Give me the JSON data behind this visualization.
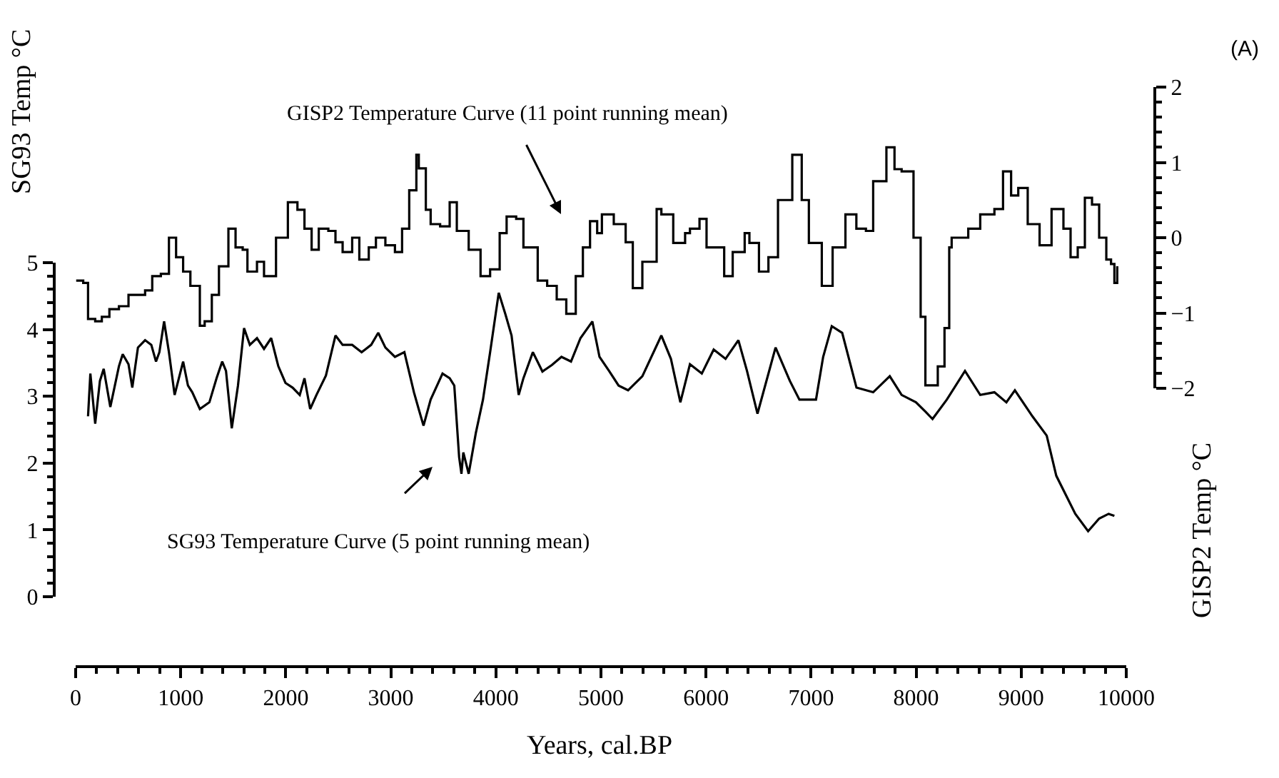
{
  "chart_data": {
    "type": "line",
    "xlabel": "Years, cal.BP",
    "ylabel": "SG93 Temp °C",
    "y2label": "GISP2 Temp °C",
    "xlim": [
      0,
      10000
    ],
    "xticks": [
      0,
      1000,
      2000,
      3000,
      4000,
      5000,
      6000,
      7000,
      8000,
      9000,
      10000
    ],
    "ylim": [
      0,
      5
    ],
    "yticks": [
      0,
      1,
      2,
      3,
      4,
      5
    ],
    "y2lim": [
      -2,
      2
    ],
    "y2ticks": [
      -2,
      -1,
      0,
      1,
      2
    ],
    "grid": false,
    "line_style": "solid",
    "marker": "none",
    "series": [
      {
        "type": "step",
        "axis": "y2",
        "color": "#000000",
        "x": [
          5,
          72,
          118,
          186,
          249,
          321,
          412,
          503,
          593,
          661,
          729,
          811,
          888,
          956,
          1023,
          1092,
          1182,
          1228,
          1296,
          1364,
          1454,
          1522,
          1590,
          1635,
          1726,
          1793,
          1907,
          2020,
          2111,
          2178,
          2246,
          2314,
          2405,
          2473,
          2541,
          2632,
          2700,
          2790,
          2858,
          2948,
          3039,
          3107,
          3175,
          3243,
          3266,
          3333,
          3379,
          3469,
          3560,
          3628,
          3741,
          3854,
          3945,
          4036,
          4102,
          4193,
          4262,
          4398,
          4488,
          4579,
          4670,
          4760,
          4828,
          4896,
          4964,
          5009,
          5122,
          5235,
          5303,
          5394,
          5530,
          5575,
          5688,
          5801,
          5847,
          5938,
          6005,
          6096,
          6173,
          6254,
          6368,
          6413,
          6504,
          6594,
          6685,
          6821,
          6911,
          6979,
          7102,
          7205,
          7327,
          7431,
          7522,
          7591,
          7717,
          7794,
          7862,
          7975,
          8043,
          8088,
          8206,
          8270,
          8315,
          8338,
          8496,
          8610,
          8745,
          8827,
          8904,
          8972,
          9062,
          9175,
          9289,
          9402,
          9470,
          9538,
          9606,
          9674,
          9742,
          9810,
          9855,
          9887,
          9914
        ],
        "values": [
          -0.57,
          -0.6,
          -1.08,
          -1.11,
          -1.05,
          -0.95,
          -0.91,
          -0.76,
          -0.76,
          -0.7,
          -0.51,
          -0.48,
          0.0,
          -0.26,
          -0.45,
          -0.64,
          -1.17,
          -1.11,
          -0.76,
          -0.38,
          0.12,
          -0.13,
          -0.16,
          -0.45,
          -0.32,
          -0.51,
          0.0,
          0.47,
          0.37,
          0.12,
          -0.16,
          0.12,
          0.09,
          -0.06,
          -0.19,
          0.0,
          -0.29,
          -0.13,
          0.0,
          -0.1,
          -0.19,
          0.12,
          0.63,
          1.1,
          0.92,
          0.37,
          0.18,
          0.15,
          0.47,
          0.09,
          -0.16,
          -0.51,
          -0.42,
          0.06,
          0.28,
          0.25,
          -0.13,
          -0.57,
          -0.64,
          -0.82,
          -1.01,
          -0.51,
          -0.13,
          0.22,
          0.06,
          0.31,
          0.18,
          -0.06,
          -0.67,
          -0.32,
          0.38,
          0.31,
          -0.07,
          0.06,
          0.12,
          0.25,
          -0.13,
          -0.13,
          -0.51,
          -0.19,
          0.06,
          -0.07,
          -0.45,
          -0.26,
          0.5,
          1.1,
          0.5,
          -0.07,
          -0.64,
          -0.13,
          0.31,
          0.12,
          0.09,
          0.75,
          1.2,
          0.91,
          0.88,
          0.0,
          -1.05,
          -1.96,
          -1.71,
          -1.2,
          -0.13,
          0.0,
          0.12,
          0.31,
          0.38,
          0.88,
          0.56,
          0.66,
          0.18,
          -0.1,
          0.38,
          0.12,
          -0.26,
          -0.13,
          0.53,
          0.44,
          0.0,
          -0.29,
          -0.35,
          -0.6,
          -0.38
        ]
      },
      {
        "color": "#000000",
        "x": [
          118,
          140,
          186,
          231,
          267,
          330,
          412,
          448,
          503,
          539,
          593,
          661,
          720,
          765,
          797,
          842,
          888,
          942,
          1023,
          1069,
          1110,
          1182,
          1273,
          1341,
          1395,
          1431,
          1486,
          1545,
          1603,
          1658,
          1726,
          1793,
          1861,
          1929,
          1997,
          2065,
          2133,
          2178,
          2232,
          2292,
          2382,
          2473,
          2541,
          2632,
          2722,
          2813,
          2880,
          2948,
          3039,
          3129,
          3220,
          3265,
          3311,
          3379,
          3492,
          3560,
          3604,
          3650,
          3672,
          3690,
          3741,
          3809,
          3877,
          3945,
          4027,
          4090,
          4149,
          4217,
          4262,
          4352,
          4443,
          4534,
          4624,
          4715,
          4805,
          4918,
          4986,
          5077,
          5168,
          5258,
          5394,
          5575,
          5666,
          5756,
          5847,
          5960,
          6073,
          6186,
          6308,
          6390,
          6490,
          6662,
          6798,
          6889,
          7047,
          7115,
          7197,
          7296,
          7432,
          7591,
          7749,
          7862,
          7998,
          8088,
          8156,
          8292,
          8465,
          8610,
          8745,
          8859,
          8940,
          9107,
          9243,
          9334,
          9515,
          9637,
          9742,
          9832,
          9887
        ],
        "values": [
          2.7,
          3.34,
          2.59,
          3.23,
          3.41,
          2.84,
          3.45,
          3.63,
          3.48,
          3.13,
          3.73,
          3.84,
          3.77,
          3.52,
          3.66,
          4.12,
          3.66,
          3.02,
          3.52,
          3.16,
          3.06,
          2.81,
          2.91,
          3.27,
          3.52,
          3.38,
          2.52,
          3.16,
          4.02,
          3.77,
          3.87,
          3.71,
          3.87,
          3.45,
          3.2,
          3.13,
          3.02,
          3.27,
          2.81,
          3.02,
          3.31,
          3.91,
          3.77,
          3.77,
          3.66,
          3.77,
          3.95,
          3.73,
          3.59,
          3.66,
          3.06,
          2.81,
          2.56,
          2.95,
          3.34,
          3.27,
          3.16,
          2.09,
          1.84,
          2.16,
          1.84,
          2.45,
          2.95,
          3.66,
          4.55,
          4.23,
          3.91,
          3.02,
          3.27,
          3.66,
          3.37,
          3.47,
          3.59,
          3.52,
          3.87,
          4.12,
          3.59,
          3.38,
          3.16,
          3.09,
          3.3,
          3.91,
          3.56,
          2.91,
          3.48,
          3.34,
          3.7,
          3.56,
          3.84,
          3.38,
          2.74,
          3.73,
          3.23,
          2.95,
          2.95,
          3.59,
          4.05,
          3.95,
          3.13,
          3.06,
          3.3,
          3.02,
          2.91,
          2.77,
          2.66,
          2.95,
          3.38,
          3.02,
          3.06,
          2.91,
          3.09,
          2.7,
          2.41,
          1.81,
          1.24,
          0.98,
          1.17,
          1.24,
          1.21
        ]
      }
    ],
    "annotations": [
      "GISP2 Temperature Curve (11 point running mean)",
      "SG93 Temperature Curve (5 point running mean)",
      "(A)"
    ]
  }
}
